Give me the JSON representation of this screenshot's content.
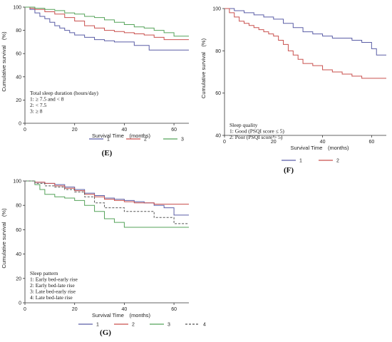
{
  "chart_data": [
    {
      "panel": "(E)",
      "type": "line",
      "xlabel": "Survival Time　(months)",
      "ylabel": "Cumulative survival　(%)",
      "xlim": [
        0,
        66
      ],
      "ylim": [
        0,
        100
      ],
      "xticks": [
        0,
        20,
        40,
        60
      ],
      "yticks": [
        0,
        20,
        40,
        60,
        80,
        100
      ],
      "legend_placement": "bottom",
      "annotation": [
        "Total sleep duration (hours/day)",
        "1: ≥ 7.5 and < 8",
        "2: < 7.5",
        "3: ≥ 8"
      ],
      "series": [
        {
          "name": "1",
          "color": "#5b5ea6",
          "x": [
            0,
            2,
            4,
            6,
            8,
            10,
            12,
            14,
            16,
            18,
            20,
            24,
            28,
            32,
            36,
            40,
            44,
            50,
            56,
            66
          ],
          "y": [
            100,
            98,
            95,
            92,
            90,
            87,
            84,
            82,
            80,
            78,
            76,
            74,
            72,
            71,
            70,
            70,
            67,
            63,
            63,
            63
          ]
        },
        {
          "name": "2",
          "color": "#c9504e",
          "x": [
            0,
            2,
            4,
            8,
            12,
            16,
            20,
            24,
            28,
            32,
            36,
            40,
            44,
            48,
            52,
            56,
            66
          ],
          "y": [
            100,
            99,
            98,
            96,
            94,
            91,
            88,
            84,
            82,
            80,
            79,
            78,
            77,
            76,
            74,
            72,
            72
          ]
        },
        {
          "name": "3",
          "color": "#55a35a",
          "x": [
            0,
            4,
            8,
            12,
            16,
            20,
            24,
            28,
            32,
            36,
            40,
            44,
            48,
            52,
            56,
            60,
            66
          ],
          "y": [
            100,
            99,
            98,
            97,
            95,
            94,
            92,
            91,
            89,
            87,
            85,
            83,
            82,
            80,
            78,
            75,
            75
          ]
        }
      ]
    },
    {
      "panel": "(F)",
      "type": "line",
      "xlabel": "Survival Time　(months)",
      "ylabel": "Cumulative survival　(%)",
      "xlim": [
        0,
        66
      ],
      "ylim": [
        40,
        100
      ],
      "xticks": [
        0,
        20,
        40,
        60
      ],
      "yticks": [
        40,
        60,
        80,
        100
      ],
      "legend_placement": "bottom",
      "annotation": [
        "Sleep quality",
        "1: Good (PSQI score ≤ 5)",
        "2: Poor (PSQI score > 5)"
      ],
      "series": [
        {
          "name": "1",
          "color": "#5b5ea6",
          "x": [
            0,
            4,
            8,
            12,
            16,
            20,
            24,
            28,
            32,
            36,
            40,
            44,
            48,
            52,
            56,
            60,
            62,
            66
          ],
          "y": [
            100,
            99,
            98,
            97,
            96,
            95,
            93,
            91,
            89,
            88,
            87,
            86,
            86,
            85,
            84,
            81,
            78,
            78
          ]
        },
        {
          "name": "2",
          "color": "#c9504e",
          "x": [
            0,
            2,
            4,
            6,
            8,
            10,
            12,
            14,
            16,
            18,
            20,
            22,
            24,
            26,
            28,
            30,
            32,
            36,
            40,
            44,
            48,
            52,
            56,
            60,
            66
          ],
          "y": [
            100,
            98,
            96,
            94,
            93,
            92,
            91,
            90,
            89,
            88,
            87,
            85,
            83,
            80,
            78,
            76,
            74,
            73,
            71,
            70,
            69,
            68,
            67,
            67,
            67
          ]
        }
      ]
    },
    {
      "panel": "(G)",
      "type": "line",
      "xlabel": "Survival Time　(months)",
      "ylabel": "Cumulative survival　(%)",
      "xlim": [
        0,
        66
      ],
      "ylim": [
        0,
        100
      ],
      "xticks": [
        0,
        20,
        40,
        60
      ],
      "yticks": [
        0,
        20,
        40,
        60,
        80,
        100
      ],
      "legend_placement": "bottom",
      "annotation": [
        "Sleep pattern",
        "1: Early bed-early rise",
        "2: Early bed-late rise",
        "3: Late bed-early rise",
        "4: Late bed-late rise"
      ],
      "series": [
        {
          "name": "1",
          "color": "#5b5ea6",
          "dashed": false,
          "x": [
            0,
            4,
            8,
            12,
            16,
            20,
            24,
            28,
            32,
            36,
            40,
            44,
            48,
            52,
            56,
            60,
            66
          ],
          "y": [
            100,
            99,
            98,
            97,
            95,
            93,
            90,
            88,
            86,
            85,
            84,
            83,
            82,
            80,
            78,
            72,
            72
          ]
        },
        {
          "name": "2",
          "color": "#c9504e",
          "dashed": false,
          "x": [
            0,
            4,
            8,
            12,
            16,
            20,
            24,
            28,
            32,
            36,
            40,
            44,
            48,
            52,
            66
          ],
          "y": [
            100,
            99,
            98,
            96,
            94,
            92,
            89,
            87,
            85,
            84,
            83,
            82,
            82,
            81,
            81
          ]
        },
        {
          "name": "3",
          "color": "#55a35a",
          "dashed": false,
          "x": [
            0,
            4,
            6,
            8,
            12,
            16,
            20,
            24,
            28,
            32,
            36,
            40,
            66
          ],
          "y": [
            100,
            97,
            93,
            89,
            87,
            86,
            84,
            80,
            75,
            69,
            66,
            62,
            62
          ]
        },
        {
          "name": "4",
          "color": "#555555",
          "dashed": true,
          "x": [
            0,
            4,
            8,
            12,
            16,
            20,
            24,
            28,
            32,
            40,
            48,
            52,
            56,
            60,
            66
          ],
          "y": [
            100,
            98,
            96,
            95,
            93,
            91,
            87,
            82,
            78,
            75,
            75,
            70,
            70,
            65,
            65
          ]
        }
      ]
    }
  ]
}
